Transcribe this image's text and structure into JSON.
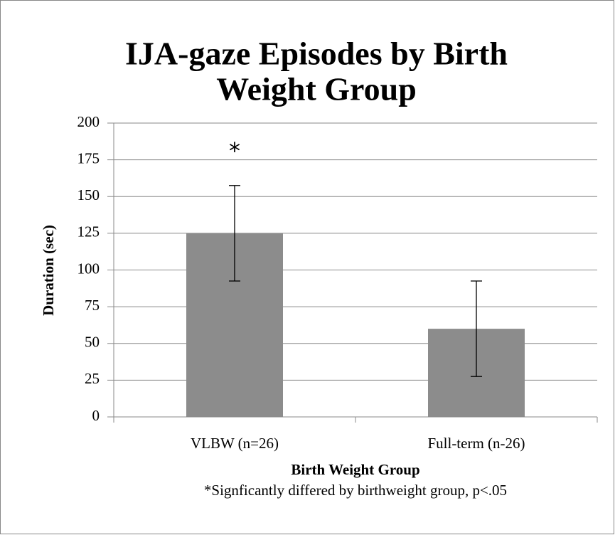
{
  "chart_data": {
    "type": "bar",
    "title": [
      "IJA-gaze Episodes by Birth",
      "Weight Group"
    ],
    "x_label": "Birth Weight Group",
    "y_label": "Duration (sec)",
    "categories": [
      "VLBW (n=26)",
      "Full-term (n-26)"
    ],
    "values": [
      125,
      60
    ],
    "errors": [
      32.5,
      32.5
    ],
    "color": "#8c8c8c",
    "ylim": [
      0,
      200
    ],
    "yticks": [
      0,
      25,
      50,
      75,
      100,
      125,
      150,
      175,
      200
    ],
    "grid": true,
    "annotations": [
      "*",
      "*Signficantly differed by birthweight group, p<.05"
    ]
  }
}
